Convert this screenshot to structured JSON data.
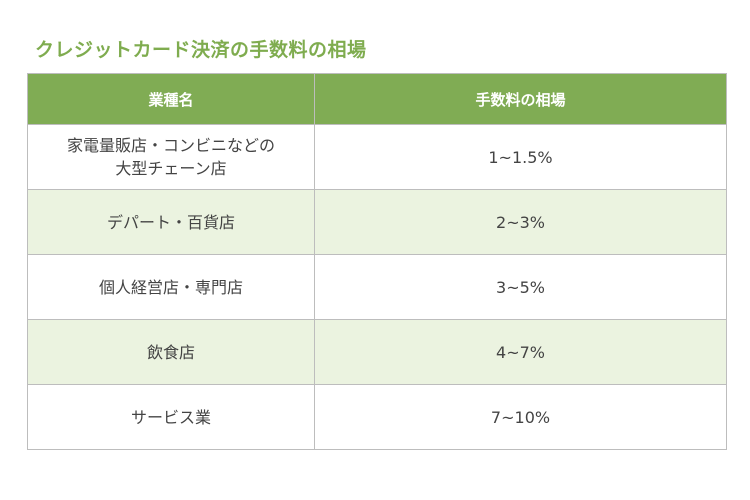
{
  "title": "クレジットカード決済の手数料の相場",
  "table": {
    "headers": [
      "業種名",
      "手数料の相場"
    ],
    "rows": [
      {
        "category_lines": [
          "家電量販店・コンビニなどの",
          "大型チェーン店"
        ],
        "fee": "1~1.5%"
      },
      {
        "category_lines": [
          "デパート・百貨店"
        ],
        "fee": "2~3%"
      },
      {
        "category_lines": [
          "個人経営店・専門店"
        ],
        "fee": "3~5%"
      },
      {
        "category_lines": [
          "飲食店"
        ],
        "fee": "4~7%"
      },
      {
        "category_lines": [
          "サービス業"
        ],
        "fee": "7~10%"
      }
    ]
  },
  "colors": {
    "title": "#7fac4f",
    "header_bg": "#80ac54",
    "row_alt_bg": "#ebf3e0"
  }
}
